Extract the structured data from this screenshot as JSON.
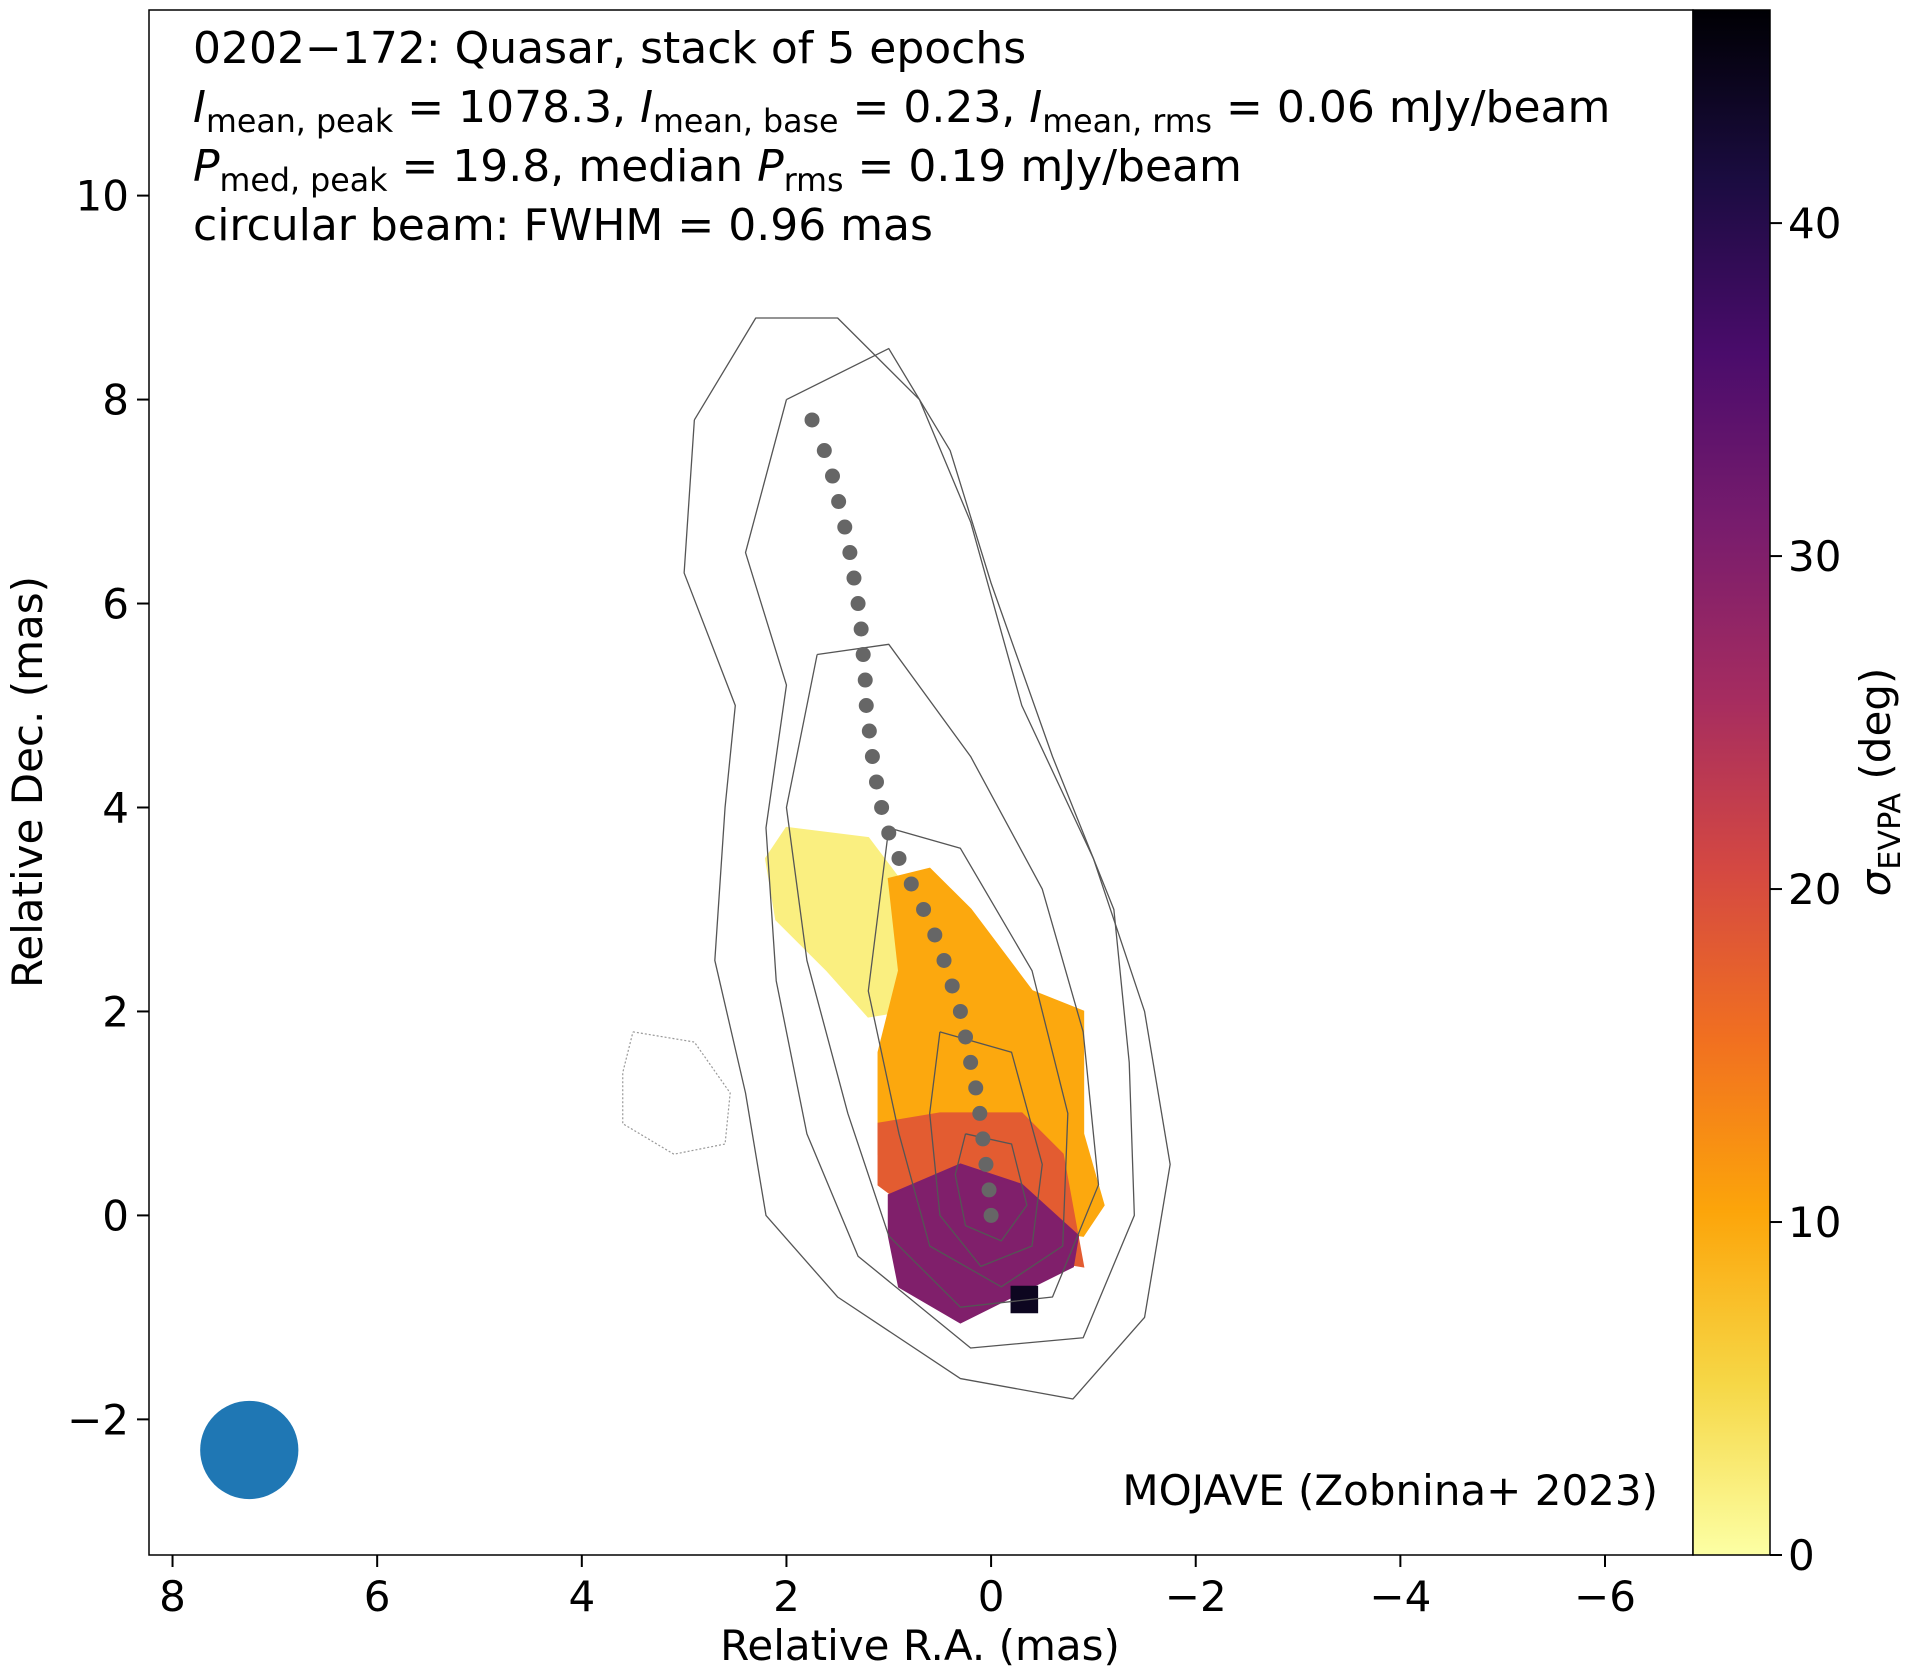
{
  "chart_data": {
    "type": "image_contour",
    "title_lines": [
      [
        {
          "t": "0202−172: Quasar, stack of 5 epochs"
        }
      ],
      [
        {
          "t": "I",
          "italic": true
        },
        {
          "t": "mean, peak",
          "sub": true
        },
        {
          "t": " = 1078.3, "
        },
        {
          "t": "I",
          "italic": true
        },
        {
          "t": "mean, base",
          "sub": true
        },
        {
          "t": " = 0.23, "
        },
        {
          "t": "I",
          "italic": true
        },
        {
          "t": "mean, rms",
          "sub": true
        },
        {
          "t": " = 0.06 mJy/beam"
        }
      ],
      [
        {
          "t": "P",
          "italic": true
        },
        {
          "t": "med, peak",
          "sub": true
        },
        {
          "t": " = 19.8, median "
        },
        {
          "t": "P",
          "italic": true
        },
        {
          "t": "rms",
          "sub": true
        },
        {
          "t": " = 0.19 mJy/beam"
        }
      ],
      [
        {
          "t": "circular beam: FWHM = 0.96 mas"
        }
      ]
    ],
    "annotation": "MOJAVE (Zobnina+ 2023)",
    "x_label": "Relative R.A. (mas)",
    "y_label": "Relative Dec. (mas)",
    "colorbar_label": [
      {
        "t": "σ",
        "italic": true
      },
      {
        "t": "EVPA",
        "sub": true
      },
      {
        "t": " (deg)"
      }
    ],
    "xlim": [
      8.23,
      -6.86
    ],
    "ylim": [
      -3.33,
      11.82
    ],
    "xticks": [
      8,
      6,
      4,
      2,
      0,
      {
        "value": -2,
        "label": "−2"
      },
      {
        "value": -4,
        "label": "−4"
      },
      {
        "value": -6,
        "label": "−6"
      }
    ],
    "yticks": [
      {
        "value": -2,
        "label": "−2"
      },
      0,
      2,
      4,
      6,
      8,
      10
    ],
    "clim": [
      0,
      46.4
    ],
    "cticks": [
      0,
      10,
      20,
      30,
      40
    ],
    "colormap": [
      "#fcffa4",
      "#f6d746",
      "#fca50a",
      "#f17020",
      "#d44842",
      "#a52c60",
      "#781c6d",
      "#4a0c6b",
      "#1b0c41",
      "#000004"
    ],
    "sigma_regions": [
      {
        "value": 2,
        "x": [
          2.0,
          1.2,
          0.9,
          0.5,
          0.9,
          1.2,
          1.6,
          2.1,
          2.2
        ],
        "y": [
          3.8,
          3.7,
          3.3,
          2.9,
          2.0,
          1.95,
          2.4,
          2.9,
          3.5
        ]
      },
      {
        "value": 10,
        "x": [
          1.0,
          0.6,
          0.2,
          -0.4,
          -0.9,
          -0.9,
          -1.1,
          -0.9,
          0.5,
          1.1,
          1.1,
          0.9
        ],
        "y": [
          3.3,
          3.4,
          3.0,
          2.2,
          2.0,
          0.8,
          0.1,
          -0.2,
          0.0,
          0.6,
          1.6,
          2.4
        ]
      },
      {
        "value": 18,
        "x": [
          1.1,
          0.5,
          -0.3,
          -0.7,
          -0.9,
          0.3,
          1.1
        ],
        "y": [
          0.9,
          1.0,
          1.0,
          0.6,
          -0.5,
          -0.3,
          0.3
        ]
      },
      {
        "value": 30,
        "x": [
          1.0,
          0.3,
          -0.3,
          -0.85,
          -0.8,
          -0.2,
          0.3,
          0.9,
          1.0
        ],
        "y": [
          0.2,
          0.5,
          0.3,
          -0.2,
          -0.5,
          -0.8,
          -1.05,
          -0.7,
          -0.2
        ]
      },
      {
        "value": 44,
        "x": [
          -0.2,
          -0.45,
          -0.45,
          -0.2
        ],
        "y": [
          -0.7,
          -0.7,
          -0.95,
          -0.95
        ]
      }
    ],
    "contours": [
      {
        "dashed": false,
        "x": [
          2.9,
          2.3,
          1.5,
          0.7,
          0.2,
          -0.3,
          -1.0,
          -1.5,
          -1.75,
          -1.5,
          -0.8,
          0.3,
          1.5,
          2.2,
          2.4,
          2.7,
          2.6,
          2.5,
          3.0,
          2.9
        ],
        "y": [
          7.8,
          8.8,
          8.8,
          8.0,
          6.8,
          5.0,
          3.5,
          2.0,
          0.5,
          -1.0,
          -1.8,
          -1.6,
          -0.8,
          0.0,
          1.2,
          2.5,
          4.0,
          5.0,
          6.3,
          7.8
        ]
      },
      {
        "dashed": false,
        "x": [
          2.0,
          1.0,
          0.4,
          0.0,
          -0.6,
          -1.2,
          -1.35,
          -1.4,
          -0.9,
          0.2,
          1.3,
          1.8,
          2.1,
          2.2,
          2.0,
          2.4,
          2.0
        ],
        "y": [
          8.0,
          8.5,
          7.5,
          6.2,
          4.5,
          3.0,
          1.5,
          0.0,
          -1.2,
          -1.3,
          -0.4,
          0.8,
          2.3,
          3.8,
          5.2,
          6.5,
          8.0
        ]
      },
      {
        "dashed": false,
        "x": [
          1.7,
          1.0,
          0.2,
          -0.5,
          -0.9,
          -1.05,
          -0.6,
          0.3,
          1.0,
          1.4,
          1.8,
          2.0,
          1.7
        ],
        "y": [
          5.5,
          5.6,
          4.5,
          3.2,
          1.8,
          0.3,
          -0.8,
          -0.9,
          -0.2,
          1.0,
          2.5,
          4.0,
          5.5
        ]
      },
      {
        "dashed": false,
        "x": [
          1.0,
          0.3,
          -0.4,
          -0.75,
          -0.7,
          -0.1,
          0.6,
          0.9,
          1.2,
          1.0
        ],
        "y": [
          3.8,
          3.6,
          2.4,
          1.0,
          -0.3,
          -0.7,
          -0.3,
          0.8,
          2.2,
          3.8
        ]
      },
      {
        "dashed": false,
        "x": [
          0.5,
          -0.2,
          -0.5,
          -0.4,
          0.1,
          0.5,
          0.6,
          0.5
        ],
        "y": [
          1.8,
          1.6,
          0.5,
          -0.3,
          -0.5,
          0.0,
          1.0,
          1.8
        ]
      },
      {
        "dashed": false,
        "x": [
          0.25,
          -0.2,
          -0.35,
          -0.1,
          0.25,
          0.35,
          0.25
        ],
        "y": [
          0.8,
          0.7,
          0.1,
          -0.25,
          -0.1,
          0.4,
          0.8
        ]
      },
      {
        "dashed": true,
        "x": [
          3.5,
          2.9,
          2.55,
          2.6,
          3.1,
          3.6,
          3.6,
          3.5
        ],
        "y": [
          1.8,
          1.7,
          1.2,
          0.7,
          0.6,
          0.9,
          1.4,
          1.8
        ]
      }
    ],
    "ridge": {
      "color": "#666666",
      "x": [
        0,
        0.02,
        0.05,
        0.08,
        0.11,
        0.15,
        0.2,
        0.25,
        0.3,
        0.38,
        0.46,
        0.55,
        0.66,
        0.78,
        0.9,
        1.0,
        1.07,
        1.12,
        1.16,
        1.19,
        1.22,
        1.23,
        1.25,
        1.27,
        1.3,
        1.34,
        1.38,
        1.43,
        1.49,
        1.55,
        1.63,
        1.75
      ],
      "y": [
        0,
        0.25,
        0.5,
        0.75,
        1.0,
        1.25,
        1.5,
        1.75,
        2.0,
        2.25,
        2.5,
        2.75,
        3.0,
        3.25,
        3.5,
        3.75,
        4.0,
        4.25,
        4.5,
        4.75,
        5.0,
        5.25,
        5.5,
        5.75,
        6.0,
        6.25,
        6.5,
        6.75,
        7.0,
        7.25,
        7.5,
        7.8
      ]
    },
    "beam": {
      "x": 7.25,
      "y": -2.3,
      "fwhm": 0.96,
      "color": "#1f77b4"
    }
  }
}
